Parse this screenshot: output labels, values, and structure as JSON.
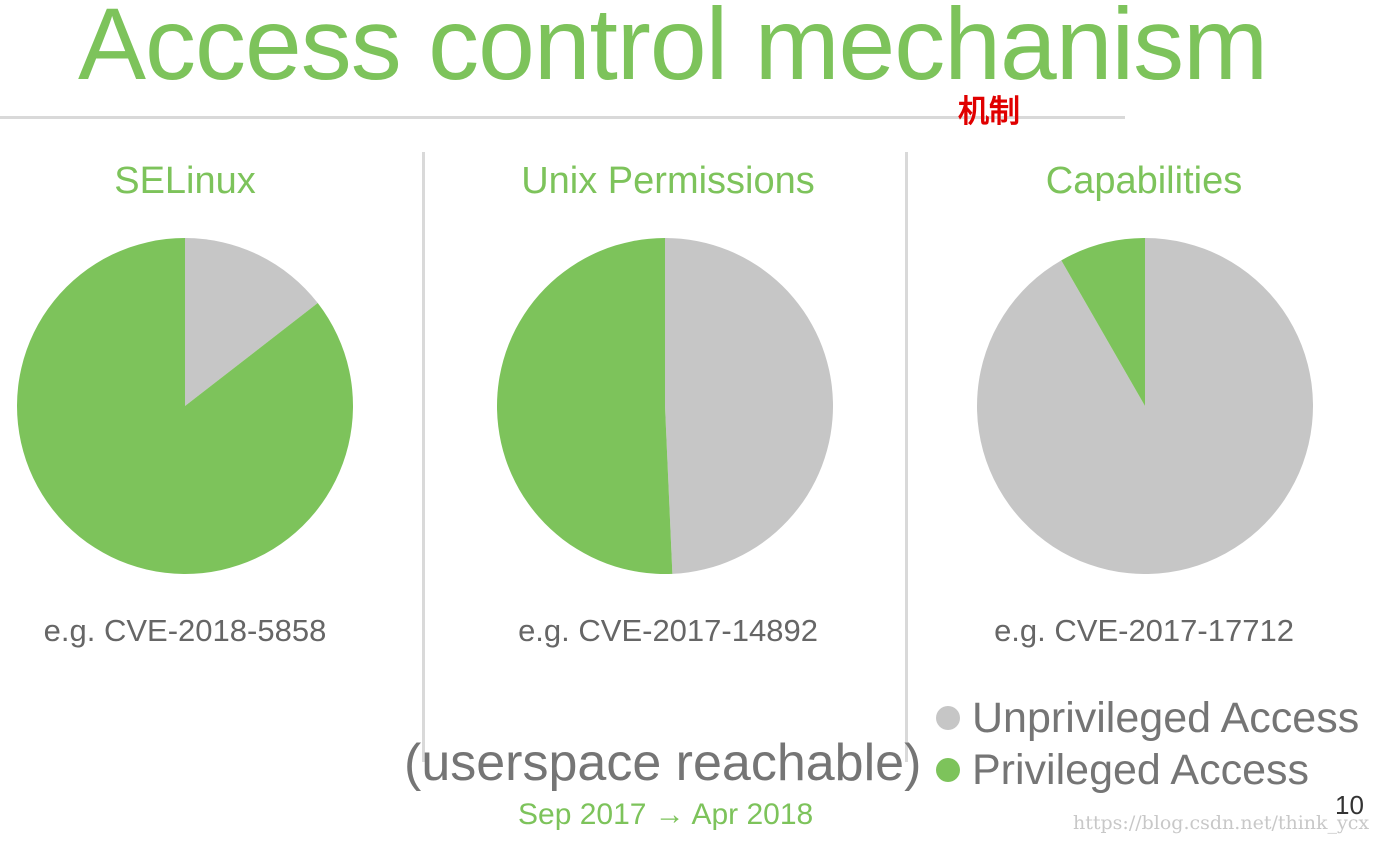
{
  "slide": {
    "title": "Access control mechanism",
    "annotation": "机制",
    "reach_text": "(userspace reachable)",
    "date_range": "Sep 2017 → Apr 2018",
    "page_number": "10",
    "watermark": "https://blog.csdn.net/think_ycx"
  },
  "colors": {
    "accent": "#7dc35b",
    "unprivileged": "#c6c6c6",
    "privileged": "#7dc35b",
    "annotation": "#e00000"
  },
  "legend": [
    {
      "label": "Unprivileged Access",
      "color": "#c6c6c6"
    },
    {
      "label": "Privileged Access",
      "color": "#7dc35b"
    }
  ],
  "chart_data": [
    {
      "type": "pie",
      "title": "SELinux",
      "caption": "e.g. CVE-2018-5858",
      "categories": [
        "Unprivileged Access",
        "Privileged Access"
      ],
      "values": [
        14.5,
        85.5
      ]
    },
    {
      "type": "pie",
      "title": "Unix Permissions",
      "caption": "e.g. CVE-2017-14892",
      "categories": [
        "Unprivileged Access",
        "Privileged Access"
      ],
      "values": [
        49.3,
        50.7
      ]
    },
    {
      "type": "pie",
      "title": "Capabilities",
      "caption": "e.g. CVE-2017-17712",
      "categories": [
        "Unprivileged Access",
        "Privileged Access"
      ],
      "values": [
        91.7,
        8.3
      ]
    }
  ]
}
